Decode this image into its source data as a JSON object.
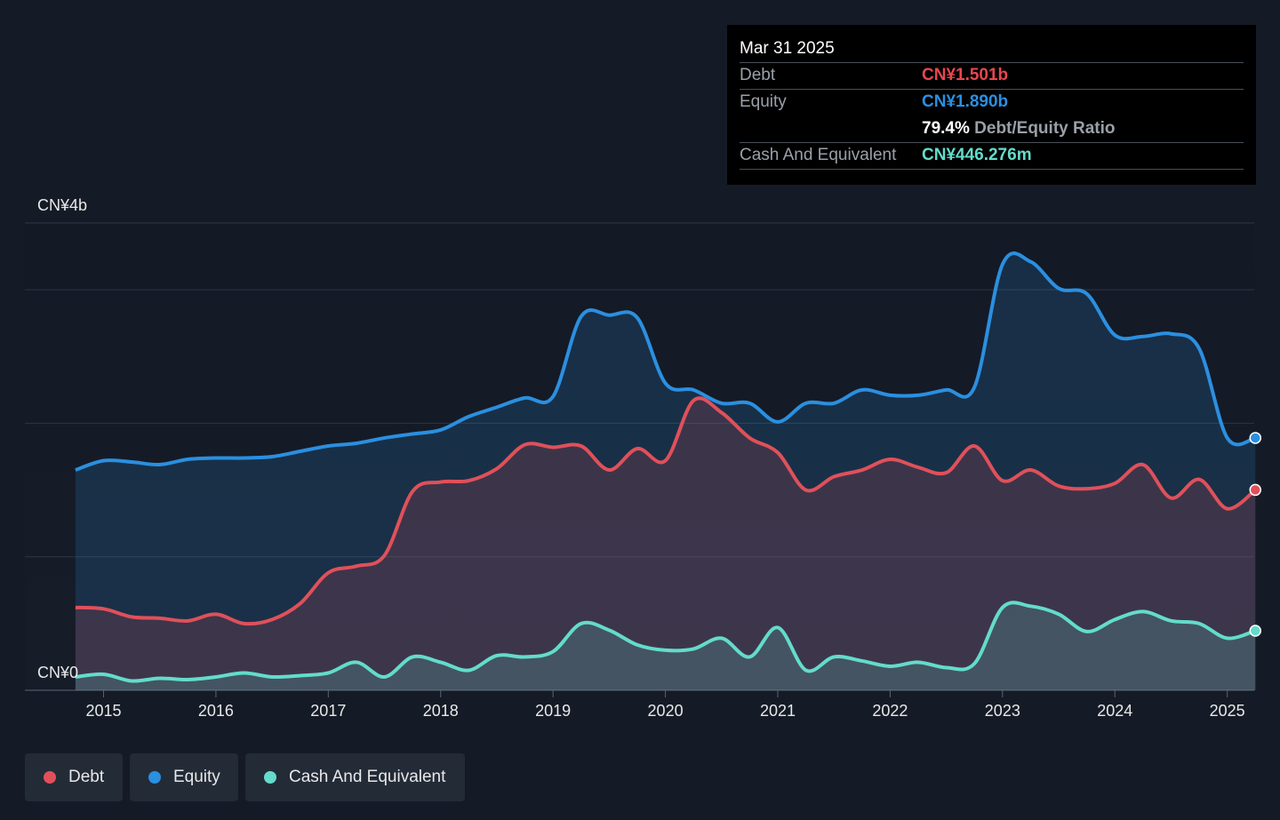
{
  "chart_data": {
    "type": "line",
    "title": null,
    "x": [
      2014.75,
      2015.0,
      2015.25,
      2015.5,
      2015.75,
      2016.0,
      2016.25,
      2016.5,
      2016.75,
      2017.0,
      2017.25,
      2017.5,
      2017.75,
      2018.0,
      2018.25,
      2018.5,
      2018.75,
      2019.0,
      2019.25,
      2019.5,
      2019.75,
      2020.0,
      2020.25,
      2020.5,
      2020.75,
      2021.0,
      2021.25,
      2021.5,
      2021.75,
      2022.0,
      2022.25,
      2022.5,
      2022.75,
      2023.0,
      2023.25,
      2023.5,
      2023.75,
      2024.0,
      2024.25,
      2024.5,
      2024.75,
      2025.0,
      2025.25
    ],
    "series": [
      {
        "name": "Debt",
        "color": "#e0505a",
        "values": [
          0.62,
          0.61,
          0.55,
          0.54,
          0.52,
          0.57,
          0.5,
          0.53,
          0.65,
          0.88,
          0.93,
          1.01,
          1.49,
          1.56,
          1.57,
          1.66,
          1.84,
          1.82,
          1.83,
          1.65,
          1.81,
          1.72,
          2.17,
          2.08,
          1.89,
          1.78,
          1.5,
          1.6,
          1.65,
          1.73,
          1.67,
          1.63,
          1.83,
          1.57,
          1.65,
          1.53,
          1.51,
          1.55,
          1.69,
          1.44,
          1.58,
          1.36,
          1.501
        ]
      },
      {
        "name": "Equity",
        "color": "#2b8fe0",
        "values": [
          1.65,
          1.72,
          1.71,
          1.69,
          1.73,
          1.74,
          1.74,
          1.75,
          1.79,
          1.83,
          1.85,
          1.89,
          1.92,
          1.95,
          2.05,
          2.12,
          2.19,
          2.2,
          2.8,
          2.81,
          2.79,
          2.3,
          2.25,
          2.15,
          2.15,
          2.01,
          2.15,
          2.15,
          2.25,
          2.21,
          2.21,
          2.25,
          2.27,
          3.19,
          3.21,
          3.01,
          2.97,
          2.66,
          2.65,
          2.67,
          2.56,
          1.89,
          1.89
        ]
      },
      {
        "name": "Cash And Equivalent",
        "color": "#63dccb",
        "values": [
          0.1,
          0.12,
          0.07,
          0.09,
          0.08,
          0.1,
          0.13,
          0.1,
          0.11,
          0.13,
          0.21,
          0.1,
          0.25,
          0.21,
          0.15,
          0.26,
          0.25,
          0.29,
          0.5,
          0.45,
          0.34,
          0.3,
          0.31,
          0.39,
          0.25,
          0.47,
          0.15,
          0.25,
          0.22,
          0.18,
          0.21,
          0.17,
          0.2,
          0.62,
          0.63,
          0.57,
          0.44,
          0.53,
          0.59,
          0.52,
          0.5,
          0.39,
          0.446
        ]
      }
    ],
    "xlim": [
      2014.3,
      2025.24
    ],
    "xticks": [
      2015,
      2016,
      2017,
      2018,
      2019,
      2020,
      2021,
      2022,
      2023,
      2024,
      2025
    ],
    "ylim": [
      0,
      3.5
    ],
    "yticks": [
      {
        "value": 0,
        "label": "CN¥0"
      },
      {
        "value": 3.5,
        "label": "CN¥4b"
      }
    ],
    "ygrid": [
      0,
      1,
      2,
      3,
      3.5
    ],
    "tooltip": {
      "date": "Mar 31 2025",
      "rows": [
        {
          "label": "Debt",
          "value": "CN¥1.501b"
        },
        {
          "label": "Equity",
          "value": "CN¥1.890b"
        },
        {
          "value": "79.4%",
          "note": "Debt/Equity Ratio"
        },
        {
          "label": "Cash And Equivalent",
          "value": "CN¥446.276m"
        }
      ]
    },
    "legend": "bottom-left"
  }
}
